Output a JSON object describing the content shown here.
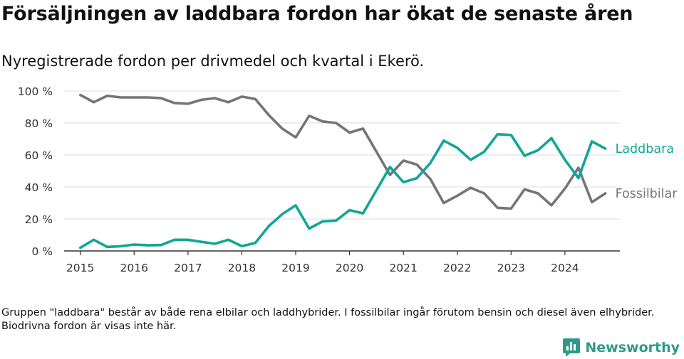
{
  "title": "Försäljningen av laddbara fordon har ökat de senaste åren",
  "subtitle": "Nyregistrerade fordon per drivmedel och kvartal i Ekerö.",
  "note": "Gruppen \"laddbara\" består av både rena elbilar och laddhybrider. I fossilbilar ingår förutom bensin och diesel även elhybrider. Biodrivna fordon är visas inte här.",
  "brand": {
    "name": "Newsworthy",
    "icon": "newsworthy-logo-icon"
  },
  "colors": {
    "laddbara": "#10a697",
    "fossil": "#757579",
    "grid": "#dddddd",
    "axis": "#333333"
  },
  "chart_data": {
    "type": "line",
    "title": "Försäljningen av laddbara fordon har ökat de senaste åren",
    "xlabel": "",
    "ylabel": "",
    "ylim": [
      0,
      100
    ],
    "xlim": [
      2014.7,
      2025.02
    ],
    "y_ticks": [
      0,
      20,
      40,
      60,
      80,
      100
    ],
    "y_tick_labels": [
      "0 %",
      "20 %",
      "40 %",
      "60 %",
      "80 %",
      "100 %"
    ],
    "x_ticks": [
      2015,
      2016,
      2017,
      2018,
      2019,
      2020,
      2021,
      2022,
      2023,
      2024
    ],
    "x_tick_labels": [
      "2015",
      "2016",
      "2017",
      "2018",
      "2019",
      "2020",
      "2021",
      "2022",
      "2023",
      "2024"
    ],
    "grid": true,
    "legend": "direct labels at line ends",
    "x": [
      2015.0,
      2015.25,
      2015.5,
      2015.75,
      2016.0,
      2016.25,
      2016.5,
      2016.75,
      2017.0,
      2017.25,
      2017.5,
      2017.75,
      2018.0,
      2018.25,
      2018.5,
      2018.75,
      2019.0,
      2019.25,
      2019.5,
      2019.75,
      2020.0,
      2020.25,
      2020.5,
      2020.75,
      2021.0,
      2021.25,
      2021.5,
      2021.75,
      2022.0,
      2022.25,
      2022.5,
      2022.75,
      2023.0,
      2023.25,
      2023.5,
      2023.75,
      2024.0,
      2024.25,
      2024.5,
      2024.75
    ],
    "series": [
      {
        "name": "Laddbara",
        "color": "#10a697",
        "values": [
          2,
          7,
          2.5,
          3,
          4,
          3.5,
          3.7,
          7,
          7,
          5.7,
          4.5,
          7,
          3,
          5,
          15.5,
          23,
          28.5,
          14,
          18.5,
          19,
          25.5,
          23.5,
          38,
          52.5,
          43,
          45.5,
          55,
          69,
          64.5,
          57,
          62,
          73,
          72.5,
          59.5,
          63,
          70.5,
          57,
          45.5,
          68.5,
          64
        ]
      },
      {
        "name": "Fossilbilar",
        "color": "#757579",
        "values": [
          97.5,
          93,
          97,
          96,
          96,
          96,
          95.5,
          92.5,
          92,
          94.5,
          95.5,
          93,
          96.5,
          95,
          85,
          76.5,
          71,
          84.5,
          81,
          80,
          74,
          76.5,
          62,
          47.5,
          56.5,
          54,
          45,
          30,
          34.5,
          39.5,
          36,
          27,
          26.5,
          38.5,
          36,
          28.5,
          39,
          52,
          30.5,
          36
        ]
      }
    ]
  }
}
